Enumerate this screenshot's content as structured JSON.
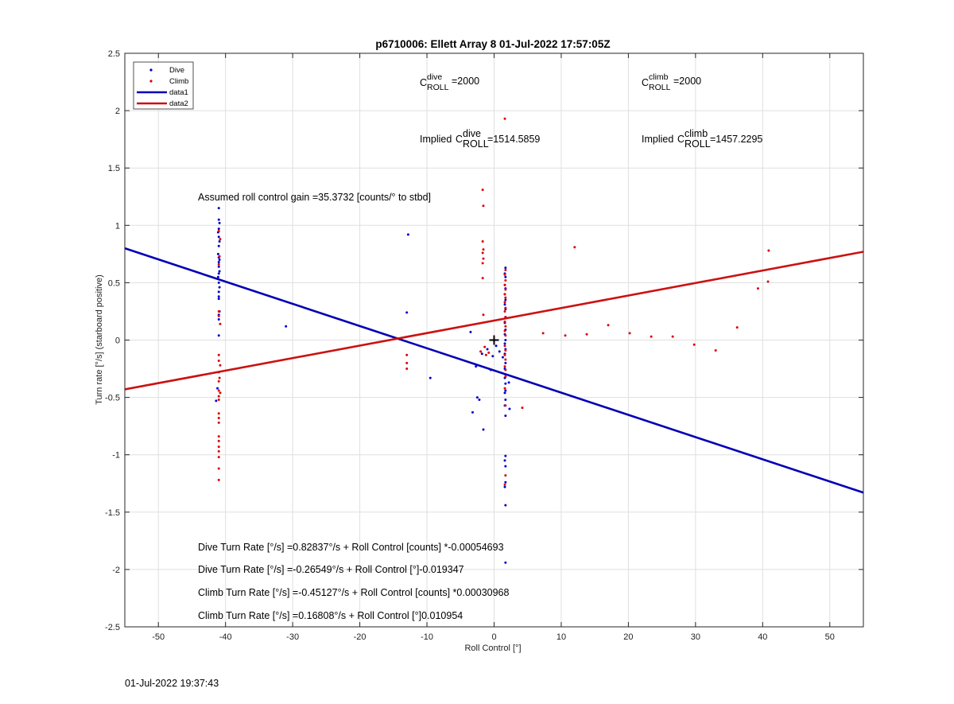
{
  "chart_data": {
    "type": "scatter",
    "title": "p6710006: Ellett Array 8 01-Jul-2022 17:57:05Z",
    "xlabel": "Roll Control [°]",
    "ylabel": "Turn rate [°/s] (starboard positive)",
    "xlim": [
      -55,
      55
    ],
    "ylim": [
      -2.5,
      2.5
    ],
    "xticks": [
      -50,
      -40,
      -30,
      -20,
      -10,
      0,
      10,
      20,
      30,
      40,
      50
    ],
    "yticks": [
      -2.5,
      -2,
      -1.5,
      -1,
      -0.5,
      0,
      0.5,
      1,
      1.5,
      2,
      2.5
    ],
    "xtick_labels": [
      "-50",
      "-40",
      "-30",
      "-20",
      "-10",
      "0",
      "10",
      "20",
      "30",
      "40",
      "50"
    ],
    "ytick_labels": [
      "-2.5",
      "-2",
      "-1.5",
      "-1",
      "-0.5",
      "0",
      "0.5",
      "1",
      "1.5",
      "2",
      "2.5"
    ],
    "grid": true,
    "legend_position": "top-left",
    "legend": [
      {
        "label": "Dive",
        "kind": "marker",
        "color": "#0000cc"
      },
      {
        "label": "Climb",
        "kind": "marker",
        "color": "#dd0000"
      },
      {
        "label": "data1",
        "kind": "line",
        "color": "#0000b4"
      },
      {
        "label": "data2",
        "kind": "line",
        "color": "#cc1111"
      }
    ],
    "series": [
      {
        "name": "Dive",
        "kind": "scatter",
        "color": "#0000cc",
        "points": [
          [
            -41,
            1.15
          ],
          [
            -41,
            1.05
          ],
          [
            -40.9,
            1.02
          ],
          [
            -41,
            0.97
          ],
          [
            -41.1,
            0.94
          ],
          [
            -41,
            0.9
          ],
          [
            -40.9,
            0.86
          ],
          [
            -41,
            0.82
          ],
          [
            -41.1,
            0.75
          ],
          [
            -41,
            0.72
          ],
          [
            -40.9,
            0.7
          ],
          [
            -41,
            0.68
          ],
          [
            -41,
            0.64
          ],
          [
            -40.9,
            0.6
          ],
          [
            -41,
            0.58
          ],
          [
            -41.1,
            0.55
          ],
          [
            -41,
            0.5
          ],
          [
            -40.9,
            0.46
          ],
          [
            -41,
            0.42
          ],
          [
            -41,
            0.38
          ],
          [
            -41,
            0.36
          ],
          [
            -40.9,
            0.25
          ],
          [
            -41,
            0.22
          ],
          [
            -41,
            0.18
          ],
          [
            -41,
            0.04
          ],
          [
            -41.2,
            -0.42
          ],
          [
            -41.4,
            -0.53
          ],
          [
            -31,
            0.12
          ],
          [
            -12.8,
            0.92
          ],
          [
            -13,
            0.24
          ],
          [
            -9.5,
            -0.33
          ],
          [
            -3.5,
            0.07
          ],
          [
            -2.7,
            -0.23
          ],
          [
            -2.5,
            -0.5
          ],
          [
            -2.2,
            -0.52
          ],
          [
            -3.2,
            -0.63
          ],
          [
            -1.6,
            -0.78
          ],
          [
            -1.8,
            -0.12
          ],
          [
            -1,
            -0.08
          ],
          [
            -0.5,
            -0.26
          ],
          [
            -0.2,
            -0.14
          ],
          [
            0.3,
            -0.05
          ],
          [
            0.8,
            -0.1
          ],
          [
            1.3,
            -0.15
          ],
          [
            1.7,
            0.63
          ],
          [
            1.6,
            0.58
          ],
          [
            1.7,
            0.55
          ],
          [
            1.6,
            0.48
          ],
          [
            1.7,
            0.45
          ],
          [
            1.6,
            0.4
          ],
          [
            1.7,
            0.35
          ],
          [
            1.6,
            0.31
          ],
          [
            1.7,
            0.27
          ],
          [
            1.7,
            0.2
          ],
          [
            1.6,
            0.15
          ],
          [
            1.7,
            0.09
          ],
          [
            1.6,
            0.05
          ],
          [
            1.7,
            0.0
          ],
          [
            1.6,
            -0.03
          ],
          [
            1.7,
            -0.08
          ],
          [
            1.6,
            -0.12
          ],
          [
            1.7,
            -0.2
          ],
          [
            1.6,
            -0.25
          ],
          [
            1.7,
            -0.3
          ],
          [
            1.6,
            -0.33
          ],
          [
            1.7,
            -0.38
          ],
          [
            1.7,
            -0.44
          ],
          [
            1.6,
            -0.46
          ],
          [
            1.7,
            -0.52
          ],
          [
            1.6,
            -0.57
          ],
          [
            2.3,
            -0.6
          ],
          [
            1.7,
            -0.66
          ],
          [
            2.2,
            -0.37
          ],
          [
            1.7,
            -1.01
          ],
          [
            1.6,
            -1.05
          ],
          [
            1.7,
            -1.1
          ],
          [
            1.7,
            -1.24
          ],
          [
            1.6,
            -1.28
          ],
          [
            1.7,
            -1.44
          ],
          [
            1.7,
            -1.94
          ]
        ]
      },
      {
        "name": "Climb",
        "kind": "scatter",
        "color": "#dd0000",
        "points": [
          [
            -41,
            0.95
          ],
          [
            -40.8,
            0.88
          ],
          [
            -40.9,
            0.73
          ],
          [
            -41,
            0.66
          ],
          [
            -41,
            0.25
          ],
          [
            -41,
            0.21
          ],
          [
            -40.8,
            0.14
          ],
          [
            -41,
            -0.13
          ],
          [
            -41,
            -0.18
          ],
          [
            -40.8,
            -0.22
          ],
          [
            -41,
            -0.28
          ],
          [
            -40.9,
            -0.33
          ],
          [
            -41,
            -0.36
          ],
          [
            -41,
            -0.44
          ],
          [
            -40.8,
            -0.46
          ],
          [
            -41,
            -0.49
          ],
          [
            -41,
            -0.52
          ],
          [
            -41,
            -0.64
          ],
          [
            -41,
            -0.68
          ],
          [
            -41,
            -0.72
          ],
          [
            -41,
            -0.84
          ],
          [
            -41,
            -0.88
          ],
          [
            -41,
            -0.93
          ],
          [
            -41,
            -0.97
          ],
          [
            -41,
            -1.02
          ],
          [
            -41,
            -1.12
          ],
          [
            -41,
            -1.22
          ],
          [
            -13,
            -0.13
          ],
          [
            -13,
            -0.2
          ],
          [
            -13,
            -0.25
          ],
          [
            -1.7,
            1.31
          ],
          [
            -1.6,
            1.17
          ],
          [
            -1.7,
            0.86
          ],
          [
            -1.6,
            0.79
          ],
          [
            -1.7,
            0.76
          ],
          [
            -1.6,
            0.71
          ],
          [
            -1.7,
            0.67
          ],
          [
            -1.7,
            0.54
          ],
          [
            -1.6,
            0.22
          ],
          [
            -2.0,
            -0.1
          ],
          [
            -1.4,
            -0.06
          ],
          [
            -1.2,
            -0.13
          ],
          [
            -0.8,
            -0.11
          ],
          [
            1.6,
            1.93
          ],
          [
            1.7,
            0.61
          ],
          [
            1.6,
            0.57
          ],
          [
            1.7,
            0.52
          ],
          [
            1.6,
            0.48
          ],
          [
            1.7,
            0.44
          ],
          [
            1.6,
            0.4
          ],
          [
            1.7,
            0.37
          ],
          [
            1.6,
            0.33
          ],
          [
            1.7,
            0.28
          ],
          [
            1.6,
            0.25
          ],
          [
            1.7,
            0.2
          ],
          [
            1.6,
            0.16
          ],
          [
            1.7,
            0.12
          ],
          [
            1.6,
            0.08
          ],
          [
            1.7,
            0.04
          ],
          [
            1.6,
            -0.05
          ],
          [
            1.7,
            -0.09
          ],
          [
            1.6,
            -0.13
          ],
          [
            1.7,
            -0.17
          ],
          [
            1.6,
            -0.23
          ],
          [
            1.7,
            -0.26
          ],
          [
            1.7,
            -0.32
          ],
          [
            1.6,
            -0.42
          ],
          [
            1.7,
            -0.57
          ],
          [
            1.7,
            -1.18
          ],
          [
            1.6,
            -1.26
          ],
          [
            4.2,
            -0.59
          ],
          [
            7.3,
            0.06
          ],
          [
            10.6,
            0.04
          ],
          [
            12.0,
            0.81
          ],
          [
            13.8,
            0.05
          ],
          [
            17.0,
            0.13
          ],
          [
            20.2,
            0.06
          ],
          [
            23.4,
            0.03
          ],
          [
            26.6,
            0.03
          ],
          [
            29.8,
            -0.04
          ],
          [
            33.0,
            -0.09
          ],
          [
            36.2,
            0.11
          ],
          [
            39.3,
            0.45
          ],
          [
            40.8,
            0.51
          ],
          [
            40.9,
            0.78
          ]
        ]
      },
      {
        "name": "data1",
        "kind": "line",
        "color": "#0000b4",
        "x": [
          -55,
          55
        ],
        "y": [
          0.8,
          -1.33
        ]
      },
      {
        "name": "data2",
        "kind": "line",
        "color": "#cc1111",
        "x": [
          -55,
          55
        ],
        "y": [
          -0.43,
          0.77
        ]
      }
    ],
    "marker": {
      "x": 0,
      "y": 0,
      "symbol": "+"
    },
    "annotations": {
      "c_roll_dive": "=2000",
      "c_roll_climb": "=2000",
      "implied_prefix": "Implied",
      "implied_dive": "=1514.5859",
      "implied_climb": "=1457.2295",
      "c_letter": "C",
      "sub_roll": "ROLL",
      "sup_dive": "dive",
      "sup_climb": "climb",
      "gain_text": "Assumed roll control gain =35.3732 [counts/° to stbd]",
      "eq1": "Dive Turn Rate [°/s] =0.82837°/s + Roll Control [counts] *-0.00054693",
      "eq2": "Dive Turn Rate [°/s] =-0.26549°/s + Roll Control [°]-0.019347",
      "eq3": "Climb Turn Rate [°/s] =-0.45127°/s + Roll Control [counts] *0.00030968",
      "eq4": "Climb Turn Rate [°/s] =0.16808°/s + Roll Control [°]0.010954"
    }
  },
  "footer_timestamp": "01-Jul-2022 19:37:43"
}
